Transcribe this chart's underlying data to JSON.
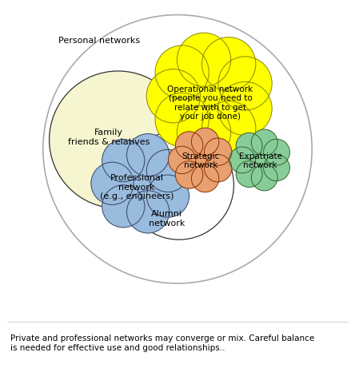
{
  "caption": "Private and professional networks may converge or mix. Careful balance\nis needed for effective use and good relationships..",
  "personal_networks_label": "Personal networks",
  "family_label": "Family\nfriends & relatives",
  "operational_label": "Operational network\n(people you need to\nrelate with to get\nyour job done)",
  "professional_label": "Professional\nnetwork\n(e.g., engineers)",
  "strategic_label": "Strategic\nnetwork",
  "expatriate_label": "Expatriate\nnetwork",
  "alumni_label": "Alumni\nnetwork",
  "colors": {
    "outer_circle": "#aaaaaa",
    "family_fill": "#f5f5d0",
    "family_edge": "#333333",
    "operational_fill": "#ffff00",
    "operational_edge": "#888800",
    "professional_fill": "#99bbdd",
    "professional_edge": "#334466",
    "strategic_fill": "#e8a070",
    "strategic_edge": "#883300",
    "expatriate_fill": "#88cc99",
    "expatriate_edge": "#336633",
    "alumni_edge": "#333333",
    "background": "#ffffff",
    "text": "#000000"
  },
  "figsize": [
    4.44,
    4.77
  ],
  "dpi": 100
}
